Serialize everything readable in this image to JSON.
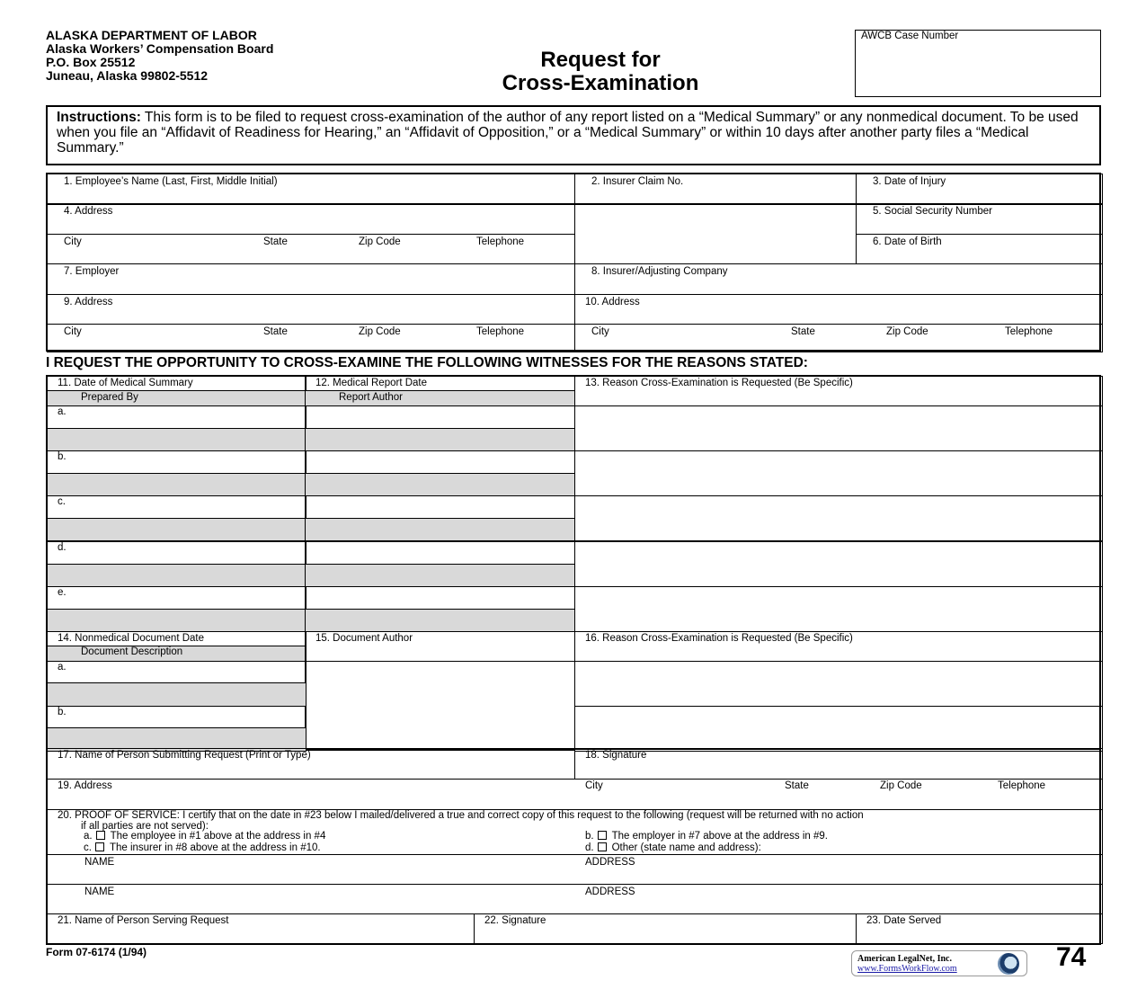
{
  "header": {
    "agency": [
      "ALASKA DEPARTMENT OF LABOR",
      "Alaska Workers’ Compensation Board",
      "P.O. Box 25512",
      "Juneau, Alaska 99802-5512"
    ],
    "title_line1": "Request for",
    "title_line2": "Cross-Examination",
    "case_number_label": "AWCB Case Number",
    "case_number_value": ""
  },
  "instructions": {
    "label": "Instructions:",
    "text": " This form is to be filed to request cross-examination of the author of any report listed on a “Medical Summary” or any nonmedical document.  To be used when you file an “Affidavit of Readiness for Hearing,” an “Affidavit of Opposition,” or a “Medical Summary” or within 10 days after another party files a “Medical Summary.”"
  },
  "section1": {
    "f1": "1.  Employee’s Name (Last, First, Middle Initial)",
    "f2": "2.  Insurer Claim No.",
    "f3": "3. Date of Injury",
    "f4": "4.  Address",
    "f5": "5.  Social Security Number",
    "f6": "6.  Date of Birth",
    "f7": "7.  Employer",
    "f8": "8.  Insurer/Adjusting Company",
    "f9": "9.  Address",
    "f10": "10.  Address",
    "city": "City",
    "state": "State",
    "zip": "Zip Code",
    "telephone": "Telephone"
  },
  "section_heading": "I REQUEST THE OPPORTUNITY TO CROSS-EXAMINE THE FOLLOWING WITNESSES FOR THE REASONS STATED:",
  "medical": {
    "f11": "11.  Date of Medical Summary",
    "f11b": "Prepared By",
    "f12": "12.  Medical Report Date",
    "f12b": "Report Author",
    "f13": "13.  Reason Cross-Examination is Requested (Be Specific)",
    "rows": [
      "a.",
      "b.",
      "c.",
      "d.",
      "e."
    ]
  },
  "nonmedical": {
    "f14": "14.  Nonmedical Document Date",
    "f14b": "Document Description",
    "f15": "15.  Document Author",
    "f16": "16.  Reason Cross-Examination is Requested (Be Specific)",
    "rows": [
      "a.",
      "b."
    ]
  },
  "submitter": {
    "f17": "17.  Name of Person Submitting Request (Print or Type)",
    "f18": "18.  Signature",
    "f19": "19.  Address",
    "city": "City",
    "state": "State",
    "zip": "Zip Code",
    "telephone": "Telephone"
  },
  "proof": {
    "line1": "20.  PROOF OF SERVICE: I certify that on the date in #23 below I mailed/delivered a true and correct copy of this request to the following (request will be returned with no action",
    "line2": "if all parties are not served):",
    "a": "The employee in #1 above at the address in #4",
    "b": "The employer in #7 above at the address in #9.",
    "c": "The insurer in #8 above at the address in #10.",
    "d": "Other (state name and address):",
    "a_letter": "a.",
    "b_letter": "b.",
    "c_letter": "c.",
    "d_letter": "d.",
    "name": "NAME",
    "address": "ADDRESS"
  },
  "serving": {
    "f21": "21.  Name of Person Serving Request",
    "f22": "22.  Signature",
    "f23": "23.  Date Served"
  },
  "footer": {
    "form_number": "Form 07-6174 (1/94)",
    "logo_line1": "American LegalNet, Inc.",
    "logo_line2": "www.FormsWorkFlow.com",
    "page_code": "74"
  }
}
